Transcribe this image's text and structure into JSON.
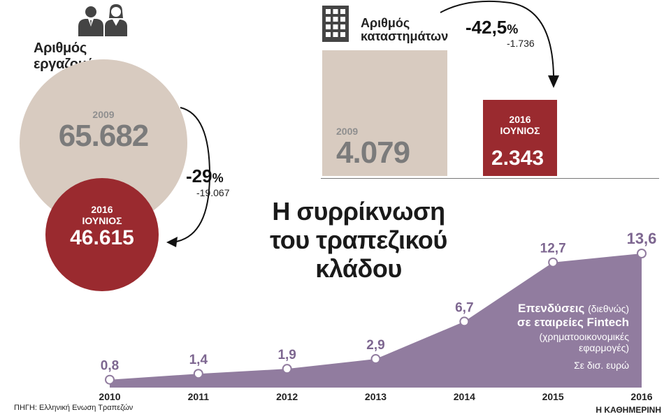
{
  "employees": {
    "title": "Αριθμός εργαζομένων",
    "year_2009": "2009",
    "value_2009": "65.682",
    "year_2016_line1": "2016",
    "year_2016_line2": "ΙΟΥΝΙΟΣ",
    "value_2016": "46.615",
    "change_pct": "-29",
    "change_pct_symbol": "%",
    "change_abs": "-19.067",
    "icon": "people-icon"
  },
  "stores": {
    "title_line1": "Αριθμός",
    "title_line2": "καταστημάτων",
    "year_2009": "2009",
    "value_2009": "4.079",
    "year_2016_line1": "2016",
    "year_2016_line2": "ΙΟΥΝΙΟΣ",
    "value_2016": "2.343",
    "change_pct": "-42,5",
    "change_pct_symbol": "%",
    "change_abs": "-1.736",
    "icon": "building-icon"
  },
  "headline": {
    "line1": "Η συρρίκνωση",
    "line2": "του τραπεζικού",
    "line3": "κλάδου"
  },
  "chart_data": {
    "type": "area",
    "title_main": "Επενδύσεις",
    "title_paren": "(διεθνώς)",
    "title_line2": "σε εταιρείες Fintech",
    "subtitle_line1": "(χρηματοοικονομικές",
    "subtitle_line2": "εφαρμογές)",
    "unit": "Σε δισ. ευρώ",
    "x": [
      "2010",
      "2011",
      "2012",
      "2013",
      "2014",
      "2015",
      "2016"
    ],
    "values": [
      0.8,
      1.4,
      1.9,
      2.9,
      6.7,
      12.7,
      13.6
    ],
    "value_labels": [
      "0,8",
      "1,4",
      "1,9",
      "2,9",
      "6,7",
      "12,7",
      "13,6"
    ],
    "ylim": [
      0,
      13.6
    ],
    "colors": {
      "area": "#917c9f",
      "label": "#7d6690"
    }
  },
  "colors": {
    "beige": "#d8cbc0",
    "dark_red": "#9a2a2f",
    "purple": "#917c9f"
  },
  "source": "ΠΗΓΗ: Ελληνική Ενωση Τραπεζών",
  "brand": "Η ΚΑΘΗΜΕΡΙΝΗ"
}
